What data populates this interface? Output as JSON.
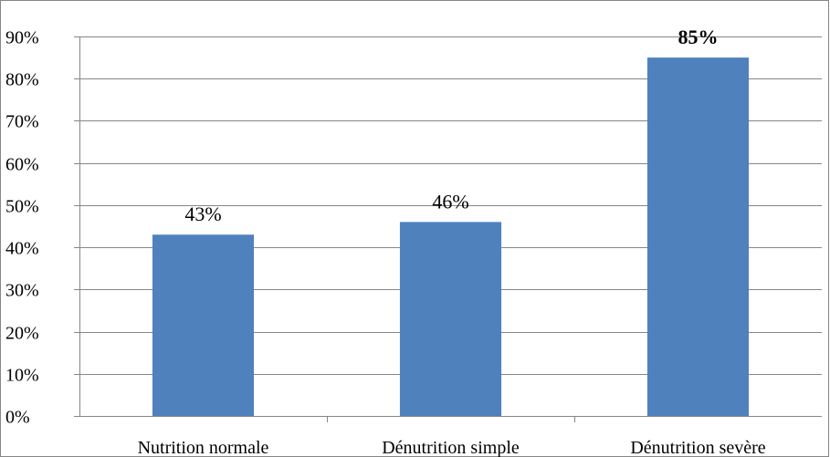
{
  "chart_data": {
    "type": "bar",
    "title": "",
    "xlabel": "",
    "ylabel": "",
    "categories": [
      "Nutrition normale",
      "Dénutrition simple",
      "Dénutrition sevère"
    ],
    "values": [
      43,
      46,
      85
    ],
    "data_labels": [
      "43%",
      "46%",
      "85%"
    ],
    "bold_labels": [
      false,
      false,
      true
    ],
    "ylim": [
      0,
      90
    ],
    "yticks": [
      0,
      10,
      20,
      30,
      40,
      50,
      60,
      70,
      80,
      90
    ],
    "ytick_labels": [
      "0%",
      "10%",
      "20%",
      "30%",
      "40%",
      "50%",
      "60%",
      "70%",
      "80%",
      "90%"
    ],
    "grid": true,
    "legend": "none",
    "colors": {
      "bar": "#4f81bd",
      "grid": "#868686",
      "axis": "#868686",
      "frame": "#868686"
    }
  }
}
